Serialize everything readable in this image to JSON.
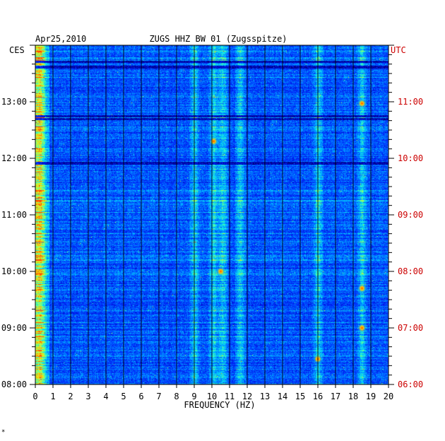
{
  "header": {
    "date": "Apr25,2010",
    "station": "ZUGS HHZ BW 01 (Zugsspitze)",
    "left_zone": "CES",
    "right_zone": "UTC"
  },
  "colors": {
    "utc_labels": "#cc0000",
    "text": "#000000",
    "background": "#000080"
  },
  "corner_mark": "*",
  "chart_data": {
    "type": "heatmap",
    "title": "ZUGS HHZ BW 01 (Zugsspitze)",
    "xlabel": "FREQUENCY (HZ)",
    "xlim": [
      0,
      20
    ],
    "x_ticks": [
      "0",
      "1",
      "2",
      "3",
      "4",
      "5",
      "6",
      "7",
      "8",
      "9",
      "10",
      "11",
      "12",
      "13",
      "14",
      "15",
      "16",
      "17",
      "18",
      "19",
      "20"
    ],
    "y_ticks_left": [
      "08:00",
      "09:00",
      "10:00",
      "11:00",
      "12:00",
      "13:00"
    ],
    "y_ticks_right": [
      "06:00",
      "07:00",
      "08:00",
      "09:00",
      "10:00",
      "11:00"
    ],
    "y_range_local_hours": [
      8,
      14
    ],
    "colormap": [
      "#000080",
      "#0010d0",
      "#0030ff",
      "#0080ff",
      "#00d0ff",
      "#40ffb0",
      "#c0ff40",
      "#ffd000",
      "#ff4000"
    ],
    "bright_bands_hz": [
      0.3,
      9,
      10.1,
      10.6,
      11.6,
      16,
      18.5
    ],
    "spot_events": [
      {
        "hz": 18.5,
        "local_hour": 12.97,
        "level": 0.98
      },
      {
        "hz": 16.0,
        "local_hour": 8.45,
        "level": 0.85
      },
      {
        "hz": 10.1,
        "local_hour": 12.3,
        "level": 0.9
      },
      {
        "hz": 18.5,
        "local_hour": 9.0,
        "level": 0.7
      },
      {
        "hz": 18.5,
        "local_hour": 9.7,
        "level": 0.65
      },
      {
        "hz": 10.5,
        "local_hour": 10.0,
        "level": 0.85
      }
    ]
  }
}
